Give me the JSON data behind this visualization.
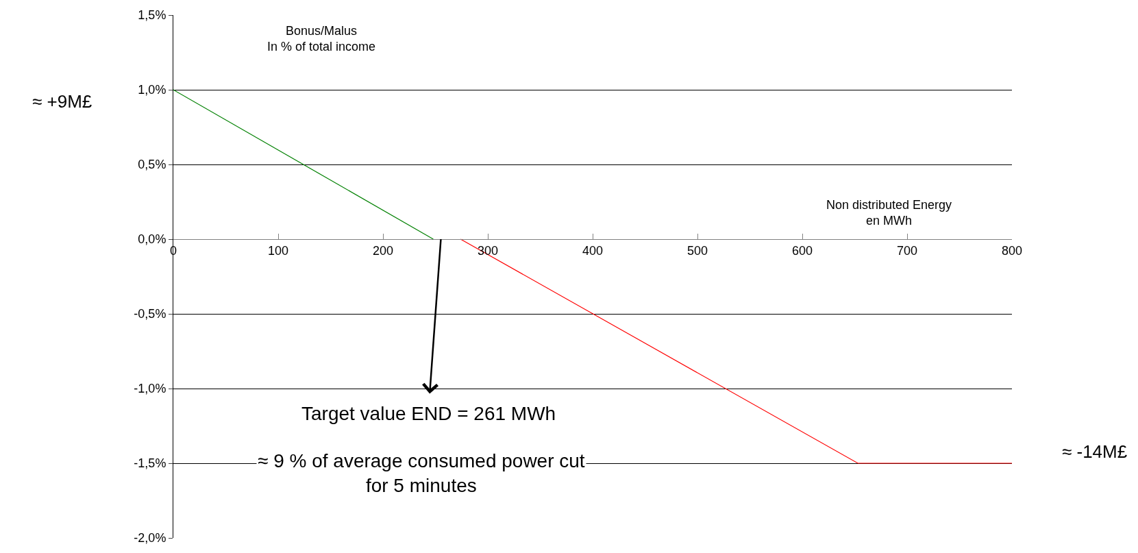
{
  "chart_data": {
    "type": "line",
    "ylabel": "Bonus/Malus\nIn % of total income",
    "xlabel": "Non distributed Energy\nen MWh",
    "series": [
      {
        "color": "#008000",
        "x": [
          0,
          248
        ],
        "values": [
          1.0,
          0
        ]
      },
      {
        "color": "#ff0000",
        "x": [
          274,
          653,
          800
        ],
        "values": [
          0,
          -1.5,
          -1.5
        ]
      }
    ],
    "annotations": [
      "Target value END = 261 MWh",
      "≈ 9 % of average consumed power cut\nfor 5 minutes",
      "≈ +9M£",
      "≈ -14M£"
    ],
    "xlim": [
      0,
      800
    ],
    "xticks": [
      0,
      100,
      200,
      300,
      400,
      500,
      600,
      700,
      800
    ],
    "ylim": [
      -2.0,
      1.5
    ],
    "yticks": [
      {
        "value": -2.0,
        "label": "-2,0%"
      },
      {
        "value": -1.5,
        "label": "-1,5%"
      },
      {
        "value": -1.0,
        "label": "-1,0%"
      },
      {
        "value": -0.5,
        "label": "-0,5%"
      },
      {
        "value": 0,
        "label": "0,0%"
      },
      {
        "value": 0.5,
        "label": "0,5%"
      },
      {
        "value": 1.0,
        "label": "1,0%"
      },
      {
        "value": 1.5,
        "label": "1,5%"
      }
    ],
    "grid": "y",
    "marker": "none",
    "line_style": "solid"
  }
}
